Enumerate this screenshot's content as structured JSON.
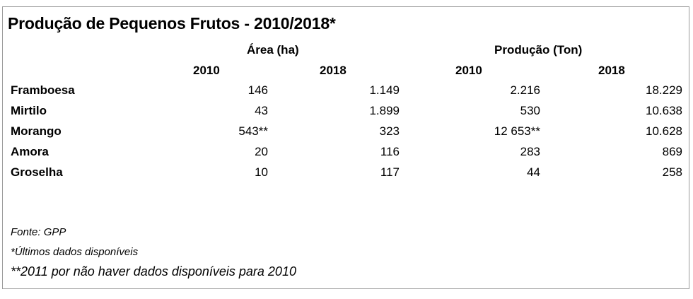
{
  "title": "Produção de Pequenos Frutos - 2010/2018*",
  "groups": [
    "Área (ha)",
    "Produção (Ton)"
  ],
  "years": [
    "2010",
    "2018",
    "2010",
    "2018"
  ],
  "rows": [
    {
      "label": "Framboesa",
      "values": [
        "146",
        "1.149",
        "2.216",
        "18.229"
      ]
    },
    {
      "label": "Mirtilo",
      "values": [
        "43",
        "1.899",
        "530",
        "10.638"
      ]
    },
    {
      "label": "Morango",
      "values": [
        "543**",
        "323",
        "12 653**",
        "10.628"
      ]
    },
    {
      "label": "Amora",
      "values": [
        "20",
        "116",
        "283",
        "869"
      ]
    },
    {
      "label": "Groselha",
      "values": [
        "10",
        "117",
        "44",
        "258"
      ]
    }
  ],
  "notes": {
    "source": "Fonte: GPP",
    "footnote1": "*Últimos dados disponíveis",
    "footnote2": "**2011 por não haver dados disponíveis para 2010"
  }
}
